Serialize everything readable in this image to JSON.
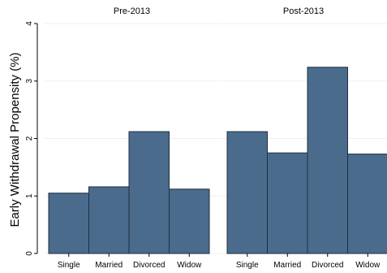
{
  "chart_data": {
    "type": "bar",
    "ylabel": "Early Withdrawal Propensity (%)",
    "ylim": [
      0,
      4
    ],
    "yticks": [
      "0",
      "1",
      "2",
      "3",
      "4"
    ],
    "grid": true,
    "categories": [
      "Single",
      "Married",
      "Divorced",
      "Widow"
    ],
    "panels": [
      {
        "title": "Pre-2013",
        "values": [
          1.05,
          1.16,
          2.12,
          1.12
        ]
      },
      {
        "title": "Post-2013",
        "values": [
          2.12,
          1.75,
          3.24,
          1.73
        ]
      }
    ],
    "bar_color": "#4a6b8c"
  }
}
